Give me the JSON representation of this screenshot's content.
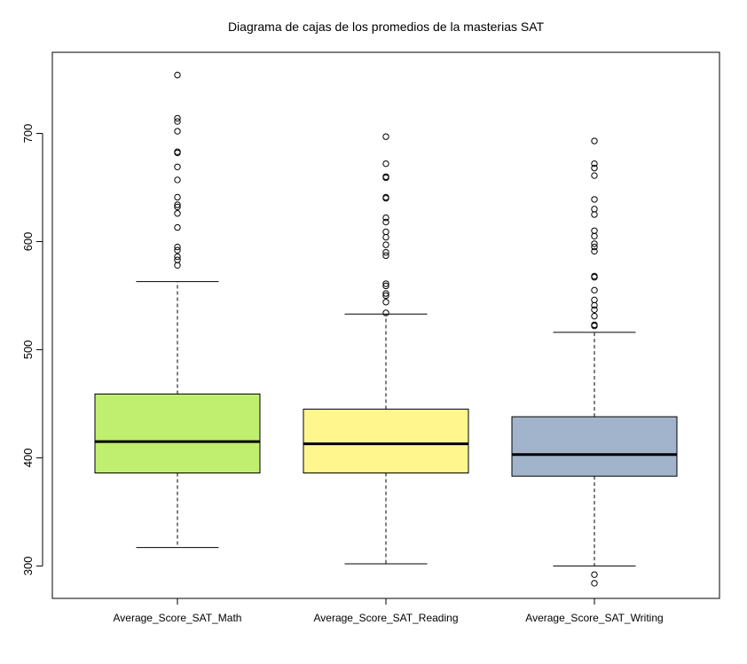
{
  "chart_data": {
    "type": "box",
    "title": "Diagrama de cajas de los promedios de la masterias SAT",
    "xlabel": "",
    "ylabel": "",
    "ylim": [
      270,
      775
    ],
    "yticks": [
      300,
      400,
      500,
      600,
      700
    ],
    "grid": false,
    "series": [
      {
        "name": "Average_Score_SAT_Math",
        "color": "#C0EE6F",
        "q1": 386,
        "median": 415,
        "q3": 459,
        "whisker_low": 317,
        "whisker_high": 563,
        "outliers": [
          754,
          714,
          711,
          702,
          683,
          682,
          669,
          657,
          641,
          634,
          632,
          626,
          613,
          595,
          592,
          586,
          583,
          578
        ]
      },
      {
        "name": "Average_Score_SAT_Reading",
        "color": "#FFF68E",
        "q1": 386,
        "median": 413,
        "q3": 445,
        "whisker_low": 302,
        "whisker_high": 533,
        "outliers": [
          697,
          672,
          660,
          659,
          641,
          640,
          622,
          618,
          609,
          604,
          597,
          590,
          587,
          561,
          559,
          552,
          550,
          544,
          534
        ]
      },
      {
        "name": "Average_Score_SAT_Writing",
        "color": "#A1B4CC",
        "q1": 383,
        "median": 403,
        "q3": 438,
        "whisker_low": 300,
        "whisker_high": 516,
        "outliers": [
          693,
          672,
          668,
          661,
          639,
          630,
          625,
          610,
          605,
          598,
          595,
          591,
          568,
          567,
          555,
          546,
          541,
          537,
          531,
          523,
          522,
          292,
          284
        ]
      }
    ]
  }
}
